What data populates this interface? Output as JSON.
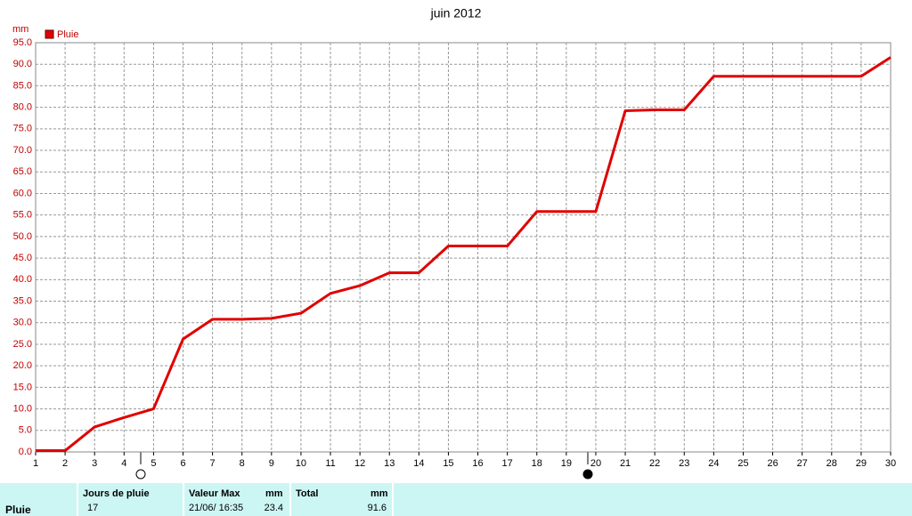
{
  "chart_data": {
    "type": "line",
    "title": "juin 2012",
    "y_label": "mm",
    "x": [
      1,
      2,
      3,
      4,
      5,
      6,
      7,
      8,
      9,
      10,
      11,
      12,
      13,
      14,
      15,
      16,
      17,
      18,
      19,
      20,
      21,
      22,
      23,
      24,
      25,
      26,
      27,
      28,
      29,
      30
    ],
    "series": [
      {
        "name": "Pluie",
        "color": "#e00000",
        "values": [
          0.3,
          0.3,
          5.8,
          8.0,
          10.0,
          26.2,
          30.8,
          30.8,
          31.0,
          32.2,
          36.8,
          38.6,
          41.6,
          41.6,
          47.8,
          47.8,
          47.8,
          55.8,
          55.8,
          55.8,
          79.2,
          79.4,
          79.4,
          87.2,
          87.2,
          87.2,
          87.2,
          87.2,
          87.2,
          91.6
        ]
      }
    ],
    "xlim": [
      1,
      30
    ],
    "xticks": [
      1,
      2,
      3,
      4,
      5,
      6,
      7,
      8,
      9,
      10,
      11,
      12,
      13,
      14,
      15,
      16,
      17,
      18,
      19,
      20,
      21,
      22,
      23,
      24,
      25,
      26,
      27,
      28,
      29,
      30
    ],
    "ylim": [
      0,
      95
    ],
    "yticks": [
      {
        "value": 0,
        "label": "0.0"
      },
      {
        "value": 5,
        "label": "5.0"
      },
      {
        "value": 10,
        "label": "10.0"
      },
      {
        "value": 15,
        "label": "15.0"
      },
      {
        "value": 20,
        "label": "20.0"
      },
      {
        "value": 25,
        "label": "25.0"
      },
      {
        "value": 30,
        "label": "30.0"
      },
      {
        "value": 35,
        "label": "35.0"
      },
      {
        "value": 40,
        "label": "40.0"
      },
      {
        "value": 45,
        "label": "45.0"
      },
      {
        "value": 50,
        "label": "50.0"
      },
      {
        "value": 55,
        "label": "55.0"
      },
      {
        "value": 60,
        "label": "60.0"
      },
      {
        "value": 65,
        "label": "65.0"
      },
      {
        "value": 70,
        "label": "70.0"
      },
      {
        "value": 75,
        "label": "75.0"
      },
      {
        "value": 80,
        "label": "80.0"
      },
      {
        "value": 85,
        "label": "85.0"
      },
      {
        "value": 90,
        "label": "90.0"
      },
      {
        "value": 95,
        "label": "95.0"
      }
    ],
    "grid": true,
    "legend": "top-left"
  },
  "table": {
    "columns": [
      "Jours de pluie",
      "Valeur Max",
      "mm",
      "Total",
      "mm"
    ],
    "rows": [
      {
        "label": "Pluie",
        "cells": [
          17,
          "21/06/ 16:35",
          23.4,
          91.6
        ]
      }
    ]
  }
}
